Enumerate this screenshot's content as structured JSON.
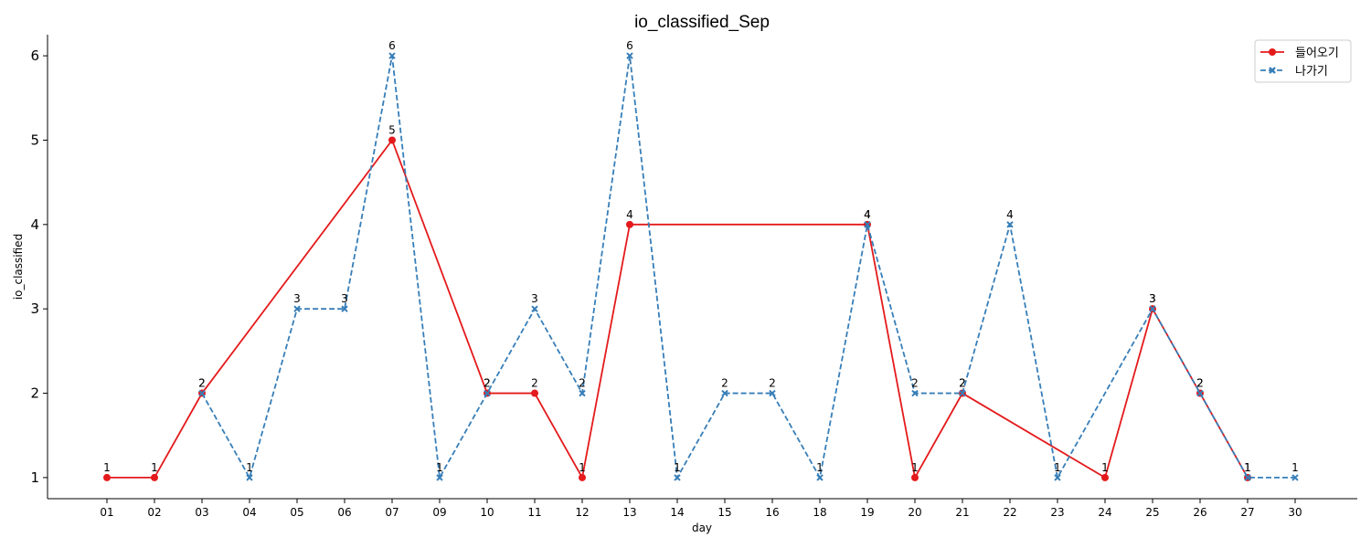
{
  "chart_data": {
    "type": "line",
    "title": "io_classified_Sep",
    "xlabel": "day",
    "ylabel": "io_classified",
    "ylim": [
      0.75,
      6.25
    ],
    "yticks": [
      1,
      2,
      3,
      4,
      5,
      6
    ],
    "grid": false,
    "legend_position": "top-right",
    "categories": [
      "01",
      "02",
      "03",
      "04",
      "05",
      "06",
      "07",
      "09",
      "10",
      "11",
      "12",
      "13",
      "14",
      "15",
      "16",
      "18",
      "19",
      "20",
      "21",
      "22",
      "23",
      "24",
      "25",
      "26",
      "27",
      "30"
    ],
    "series": [
      {
        "name": "들어오기",
        "color": "#e41a1c",
        "line_style": "solid",
        "marker": "circle",
        "x": [
          "01",
          "02",
          "03",
          "07",
          "10",
          "11",
          "12",
          "13",
          "19",
          "20",
          "21",
          "24",
          "25",
          "26",
          "27"
        ],
        "values": [
          1,
          1,
          2,
          5,
          2,
          2,
          1,
          4,
          4,
          1,
          2,
          1,
          3,
          2,
          1
        ]
      },
      {
        "name": "나가기",
        "color": "#377eb8",
        "line_style": "dashed",
        "marker": "x",
        "x": [
          "03",
          "04",
          "05",
          "06",
          "07",
          "09",
          "10",
          "11",
          "12",
          "13",
          "14",
          "15",
          "16",
          "18",
          "19",
          "20",
          "21",
          "22",
          "23",
          "25",
          "26",
          "27",
          "30"
        ],
        "values": [
          2,
          1,
          3,
          3,
          6,
          1,
          2,
          3,
          2,
          6,
          1,
          2,
          2,
          1,
          4,
          2,
          2,
          4,
          1,
          3,
          2,
          1,
          1
        ]
      }
    ]
  }
}
